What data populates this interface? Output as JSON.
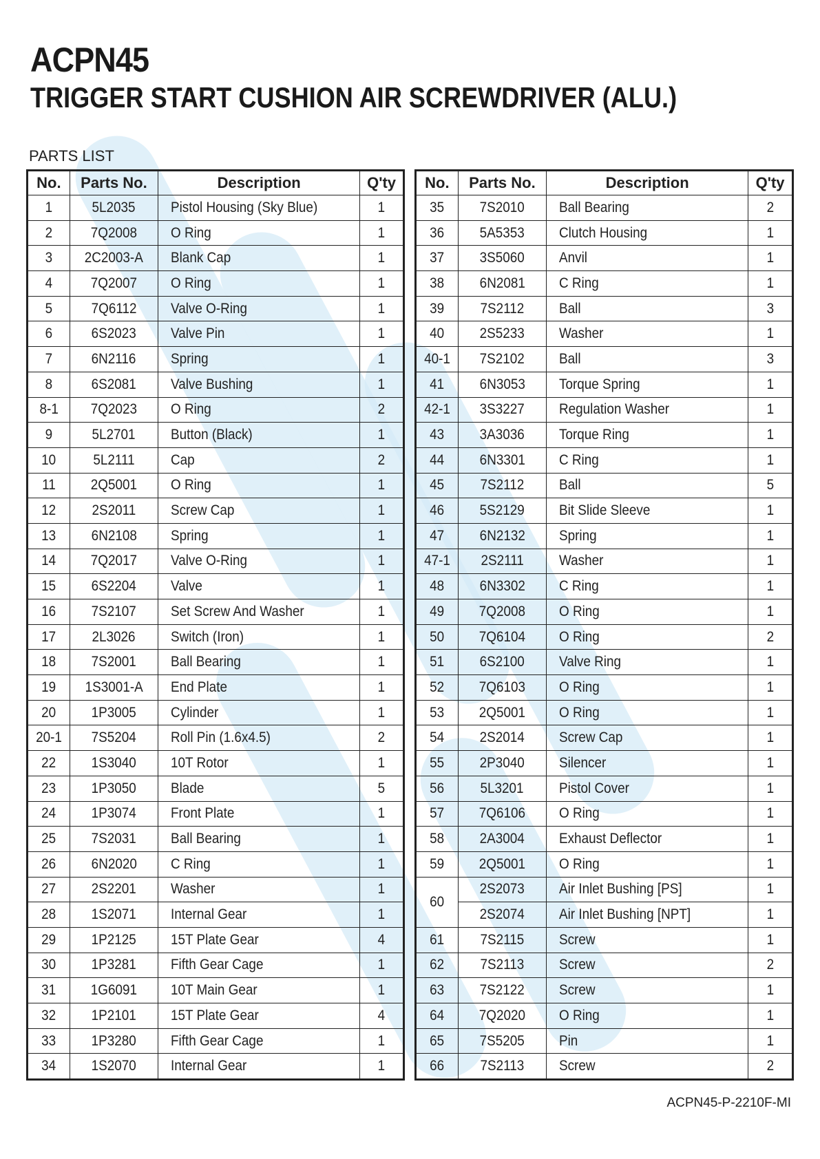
{
  "header": {
    "model": "ACPN45",
    "title": "TRIGGER START CUSHION AIR SCREWDRIVER (ALU.)",
    "section": "PARTS LIST"
  },
  "columns": [
    "No.",
    "Parts No.",
    "Description",
    "Q'ty"
  ],
  "watermark_color": "#d6ebf7",
  "left_table": [
    [
      "1",
      "5L2035",
      "Pistol Housing (Sky Blue)",
      "1"
    ],
    [
      "2",
      "7Q2008",
      "O Ring",
      "1"
    ],
    [
      "3",
      "2C2003-A",
      "Blank Cap",
      "1"
    ],
    [
      "4",
      "7Q2007",
      "O Ring",
      "1"
    ],
    [
      "5",
      "7Q6112",
      "Valve O-Ring",
      "1"
    ],
    [
      "6",
      "6S2023",
      "Valve Pin",
      "1"
    ],
    [
      "7",
      "6N2116",
      "Spring",
      "1"
    ],
    [
      "8",
      "6S2081",
      "Valve Bushing",
      "1"
    ],
    [
      "8-1",
      "7Q2023",
      "O Ring",
      "2"
    ],
    [
      "9",
      "5L2701",
      "Button (Black)",
      "1"
    ],
    [
      "10",
      "5L2111",
      "Cap",
      "2"
    ],
    [
      "11",
      "2Q5001",
      "O Ring",
      "1"
    ],
    [
      "12",
      "2S2011",
      "Screw Cap",
      "1"
    ],
    [
      "13",
      "6N2108",
      "Spring",
      "1"
    ],
    [
      "14",
      "7Q2017",
      "Valve O-Ring",
      "1"
    ],
    [
      "15",
      "6S2204",
      "Valve",
      "1"
    ],
    [
      "16",
      "7S2107",
      "Set Screw And Washer",
      "1"
    ],
    [
      "17",
      "2L3026",
      "Switch (Iron)",
      "1"
    ],
    [
      "18",
      "7S2001",
      "Ball Bearing",
      "1"
    ],
    [
      "19",
      "1S3001-A",
      "End Plate",
      "1"
    ],
    [
      "20",
      "1P3005",
      "Cylinder",
      "1"
    ],
    [
      "20-1",
      "7S5204",
      "Roll Pin (1.6x4.5)",
      "2"
    ],
    [
      "22",
      "1S3040",
      "10T Rotor",
      "1"
    ],
    [
      "23",
      "1P3050",
      "Blade",
      "5"
    ],
    [
      "24",
      "1P3074",
      "Front Plate",
      "1"
    ],
    [
      "25",
      "7S2031",
      "Ball Bearing",
      "1"
    ],
    [
      "26",
      "6N2020",
      "C Ring",
      "1"
    ],
    [
      "27",
      "2S2201",
      "Washer",
      "1"
    ],
    [
      "28",
      "1S2071",
      "Internal Gear",
      "1"
    ],
    [
      "29",
      "1P2125",
      "15T Plate Gear",
      "4"
    ],
    [
      "30",
      "1P3281",
      "Fifth Gear Cage",
      "1"
    ],
    [
      "31",
      "1G6091",
      "10T Main Gear",
      "1"
    ],
    [
      "32",
      "1P2101",
      "15T Plate Gear",
      "4"
    ],
    [
      "33",
      "1P3280",
      "Fifth Gear Cage",
      "1"
    ],
    [
      "34",
      "1S2070",
      "Internal Gear",
      "1"
    ]
  ],
  "right_table": [
    [
      "35",
      "7S2010",
      "Ball Bearing",
      "2"
    ],
    [
      "36",
      "5A5353",
      "Clutch Housing",
      "1"
    ],
    [
      "37",
      "3S5060",
      "Anvil",
      "1"
    ],
    [
      "38",
      "6N2081",
      "C Ring",
      "1"
    ],
    [
      "39",
      "7S2112",
      "Ball",
      "3"
    ],
    [
      "40",
      "2S5233",
      "Washer",
      "1"
    ],
    [
      "40-1",
      "7S2102",
      "Ball",
      "3"
    ],
    [
      "41",
      "6N3053",
      "Torque Spring",
      "1"
    ],
    [
      "42-1",
      "3S3227",
      "Regulation Washer",
      "1"
    ],
    [
      "43",
      "3A3036",
      "Torque Ring",
      "1"
    ],
    [
      "44",
      "6N3301",
      "C Ring",
      "1"
    ],
    [
      "45",
      "7S2112",
      "Ball",
      "5"
    ],
    [
      "46",
      "5S2129",
      "Bit Slide Sleeve",
      "1"
    ],
    [
      "47",
      "6N2132",
      "Spring",
      "1"
    ],
    [
      "47-1",
      "2S2111",
      "Washer",
      "1"
    ],
    [
      "48",
      "6N3302",
      "C Ring",
      "1"
    ],
    [
      "49",
      "7Q2008",
      "O Ring",
      "1"
    ],
    [
      "50",
      "7Q6104",
      "O Ring",
      "2"
    ],
    [
      "51",
      "6S2100",
      "Valve Ring",
      "1"
    ],
    [
      "52",
      "7Q6103",
      "O Ring",
      "1"
    ],
    [
      "53",
      "2Q5001",
      "O Ring",
      "1"
    ],
    [
      "54",
      "2S2014",
      "Screw Cap",
      "1"
    ],
    [
      "55",
      "2P3040",
      "Silencer",
      "1"
    ],
    [
      "56",
      "5L3201",
      "Pistol Cover",
      "1"
    ],
    [
      "57",
      "7Q6106",
      "O Ring",
      "1"
    ],
    [
      "58",
      "2A3004",
      "Exhaust Deflector",
      "1"
    ],
    [
      "59",
      "2Q5001",
      "O Ring",
      "1"
    ],
    [
      "60",
      "2S2073",
      "Air Inlet Bushing [PS]",
      "1"
    ],
    [
      "",
      "2S2074",
      "Air Inlet Bushing [NPT]",
      "1"
    ],
    [
      "61",
      "7S2115",
      "Screw",
      "1"
    ],
    [
      "62",
      "7S2113",
      "Screw",
      "2"
    ],
    [
      "63",
      "7S2122",
      "Screw",
      "1"
    ],
    [
      "64",
      "7Q2020",
      "O Ring",
      "1"
    ],
    [
      "65",
      "7S5205",
      "Pin",
      "1"
    ],
    [
      "66",
      "7S2113",
      "Screw",
      "2"
    ]
  ],
  "footer": {
    "doc_code": "ACPN45-P-2210F-MI"
  }
}
